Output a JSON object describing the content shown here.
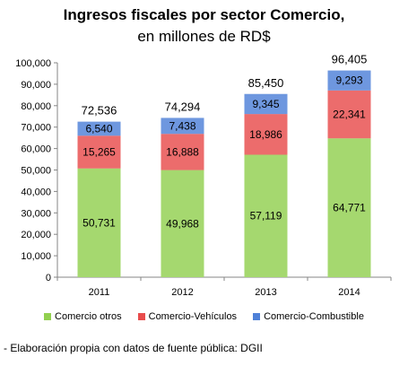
{
  "chart_data": {
    "type": "bar",
    "stacked": true,
    "title": "Ingresos fiscales por sector Comercio,",
    "subtitle": "en millones de RD$",
    "categories": [
      "2011",
      "2012",
      "2013",
      "2014"
    ],
    "series": [
      {
        "name": "Comercio otros",
        "values": [
          50731,
          49968,
          57119,
          64771
        ],
        "labels": [
          "50,731",
          "49,968",
          "57,119",
          "64,771"
        ],
        "color": "#92d050"
      },
      {
        "name": "Comercio-Vehículos",
        "values": [
          15265,
          16888,
          18986,
          22341
        ],
        "labels": [
          "15,265",
          "16,888",
          "18,986",
          "22,341"
        ],
        "color": "#e84c4c"
      },
      {
        "name": "Comercio-Combustible",
        "values": [
          6540,
          7438,
          9345,
          9293
        ],
        "labels": [
          "6,540",
          "7,438",
          "9,345",
          "9,293"
        ],
        "color": "#4f81d8"
      }
    ],
    "totals": [
      72536,
      74294,
      85450,
      96405
    ],
    "total_labels": [
      "72,536",
      "74,294",
      "85,450",
      "96,405"
    ],
    "ylim": [
      0,
      100000
    ],
    "yticks": [
      0,
      10000,
      20000,
      30000,
      40000,
      50000,
      60000,
      70000,
      80000,
      90000,
      100000
    ],
    "ytick_labels": [
      "0",
      "10,000",
      "20,000",
      "30,000",
      "40,000",
      "50,000",
      "60,000",
      "70,000",
      "80,000",
      "90,000",
      "100,000"
    ],
    "grid": false,
    "legend_position": "bottom",
    "xlabel": "",
    "ylabel": ""
  },
  "footnote": "- Elaboración propia con datos de fuente pública: DGII"
}
